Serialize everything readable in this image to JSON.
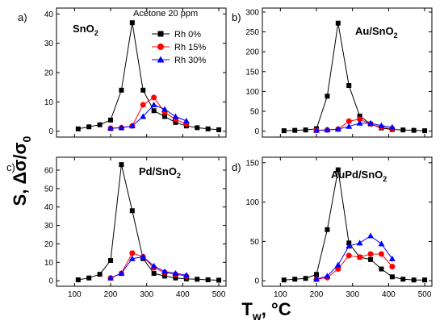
{
  "figure": {
    "ylabel": "S, Δσ/σ",
    "ylabel_sub": "0",
    "xlabel": "T",
    "xlabel_sub": "w",
    "xlabel_tail": ", °C",
    "annotation": "Acetone 20 ppm"
  },
  "legend": {
    "items": [
      {
        "label": "Rh 0%",
        "color": "#000000",
        "marker": "square"
      },
      {
        "label": "Rh 15%",
        "color": "#ff0000",
        "marker": "circle"
      },
      {
        "label": "Rh 30%",
        "color": "#0000ff",
        "marker": "triangle"
      }
    ]
  },
  "chart_data": [
    {
      "type": "line",
      "panel": "a)",
      "label_main": "SnO",
      "label_sub": "2",
      "xlim": [
        50,
        520
      ],
      "ylim": [
        -2,
        42
      ],
      "xticks": [
        100,
        200,
        300,
        400,
        500
      ],
      "yticks": [
        0,
        10,
        20,
        30,
        40
      ],
      "show_x_tick_labels": false,
      "series": [
        {
          "name": "Rh 0%",
          "color": "#000000",
          "marker": "square",
          "x": [
            110,
            140,
            170,
            200,
            230,
            260,
            290,
            320,
            350,
            380,
            410,
            440,
            470,
            500
          ],
          "y": [
            0.8,
            1.5,
            2.2,
            3.8,
            14.0,
            37.0,
            14.0,
            7.0,
            5.0,
            3.0,
            1.8,
            1.2,
            0.8,
            0.5
          ]
        },
        {
          "name": "Rh 15%",
          "color": "#ff0000",
          "marker": "circle",
          "x": [
            200,
            230,
            260,
            290,
            320,
            350,
            380,
            410
          ],
          "y": [
            1.0,
            1.2,
            1.8,
            9.0,
            11.5,
            6.5,
            4.0,
            2.5
          ]
        },
        {
          "name": "Rh 30%",
          "color": "#0000ff",
          "marker": "triangle",
          "x": [
            200,
            230,
            260,
            290,
            320,
            350,
            380,
            410
          ],
          "y": [
            1.0,
            1.2,
            1.8,
            5.0,
            9.0,
            7.5,
            5.0,
            3.5
          ]
        }
      ]
    },
    {
      "type": "line",
      "panel": "b)",
      "label_main": "Au/SnO",
      "label_sub": "2",
      "xlim": [
        50,
        520
      ],
      "ylim": [
        -15,
        310
      ],
      "xticks": [
        100,
        200,
        300,
        400,
        500
      ],
      "yticks": [
        0,
        50,
        100,
        150,
        200,
        250,
        300
      ],
      "show_x_tick_labels": false,
      "series": [
        {
          "name": "Rh 0%",
          "color": "#000000",
          "marker": "square",
          "x": [
            110,
            140,
            170,
            200,
            230,
            260,
            290,
            320,
            350,
            380,
            410,
            440,
            470,
            500
          ],
          "y": [
            1,
            2,
            3,
            6,
            88,
            272,
            115,
            38,
            18,
            8,
            4,
            3,
            2,
            1
          ]
        },
        {
          "name": "Rh 15%",
          "color": "#ff0000",
          "marker": "circle",
          "x": [
            200,
            230,
            260,
            290,
            320,
            350,
            380,
            410
          ],
          "y": [
            2,
            3,
            5,
            25,
            30,
            18,
            10,
            6
          ]
        },
        {
          "name": "Rh 30%",
          "color": "#0000ff",
          "marker": "triangle",
          "x": [
            200,
            230,
            260,
            290,
            320,
            350,
            380,
            410
          ],
          "y": [
            2,
            3,
            5,
            12,
            20,
            20,
            14,
            10
          ]
        }
      ]
    },
    {
      "type": "line",
      "panel": "c)",
      "label_main": "Pd/SnO",
      "label_sub": "2",
      "xlim": [
        50,
        520
      ],
      "ylim": [
        -3,
        67
      ],
      "xticks": [
        100,
        200,
        300,
        400,
        500
      ],
      "yticks": [
        0,
        10,
        20,
        30,
        40,
        50,
        60
      ],
      "show_x_tick_labels": true,
      "series": [
        {
          "name": "Rh 0%",
          "color": "#000000",
          "marker": "square",
          "x": [
            110,
            140,
            170,
            200,
            230,
            260,
            290,
            320,
            350,
            380,
            410,
            440,
            470,
            500
          ],
          "y": [
            0.5,
            1.5,
            3.5,
            11,
            63,
            38,
            12,
            4,
            2.5,
            1.5,
            1,
            0.8,
            0.5,
            0.3
          ]
        },
        {
          "name": "Rh 15%",
          "color": "#ff0000",
          "marker": "circle",
          "x": [
            200,
            230,
            260,
            290,
            320,
            350,
            380,
            410
          ],
          "y": [
            1.5,
            4,
            15,
            13,
            7,
            4.5,
            3.5,
            2.5
          ]
        },
        {
          "name": "Rh 30%",
          "color": "#0000ff",
          "marker": "triangle",
          "x": [
            200,
            230,
            260,
            290,
            320,
            350,
            380,
            410
          ],
          "y": [
            1.5,
            4,
            12,
            13,
            8,
            5,
            4,
            3
          ]
        }
      ]
    },
    {
      "type": "line",
      "panel": "d)",
      "label_main": "AuPd/SnO",
      "label_sub": "2",
      "xlim": [
        50,
        520
      ],
      "ylim": [
        -7,
        157
      ],
      "xticks": [
        100,
        200,
        300,
        400,
        500
      ],
      "yticks": [
        0,
        50,
        100,
        150
      ],
      "show_x_tick_labels": true,
      "series": [
        {
          "name": "Rh 0%",
          "color": "#000000",
          "marker": "square",
          "x": [
            110,
            140,
            170,
            200,
            230,
            260,
            290,
            320,
            350,
            380,
            410,
            440,
            470,
            500
          ],
          "y": [
            1,
            2,
            3,
            8,
            65,
            141,
            48,
            30,
            27,
            15,
            5,
            2,
            1,
            1
          ]
        },
        {
          "name": "Rh 15%",
          "color": "#ff0000",
          "marker": "circle",
          "x": [
            200,
            230,
            260,
            290,
            320,
            350,
            380,
            410
          ],
          "y": [
            2,
            4,
            15,
            32,
            30,
            34,
            34,
            18
          ]
        },
        {
          "name": "Rh 30%",
          "color": "#0000ff",
          "marker": "triangle",
          "x": [
            200,
            230,
            260,
            290,
            320,
            350,
            380,
            410
          ],
          "y": [
            2,
            6,
            20,
            44,
            48,
            57,
            47,
            28
          ]
        }
      ]
    }
  ]
}
